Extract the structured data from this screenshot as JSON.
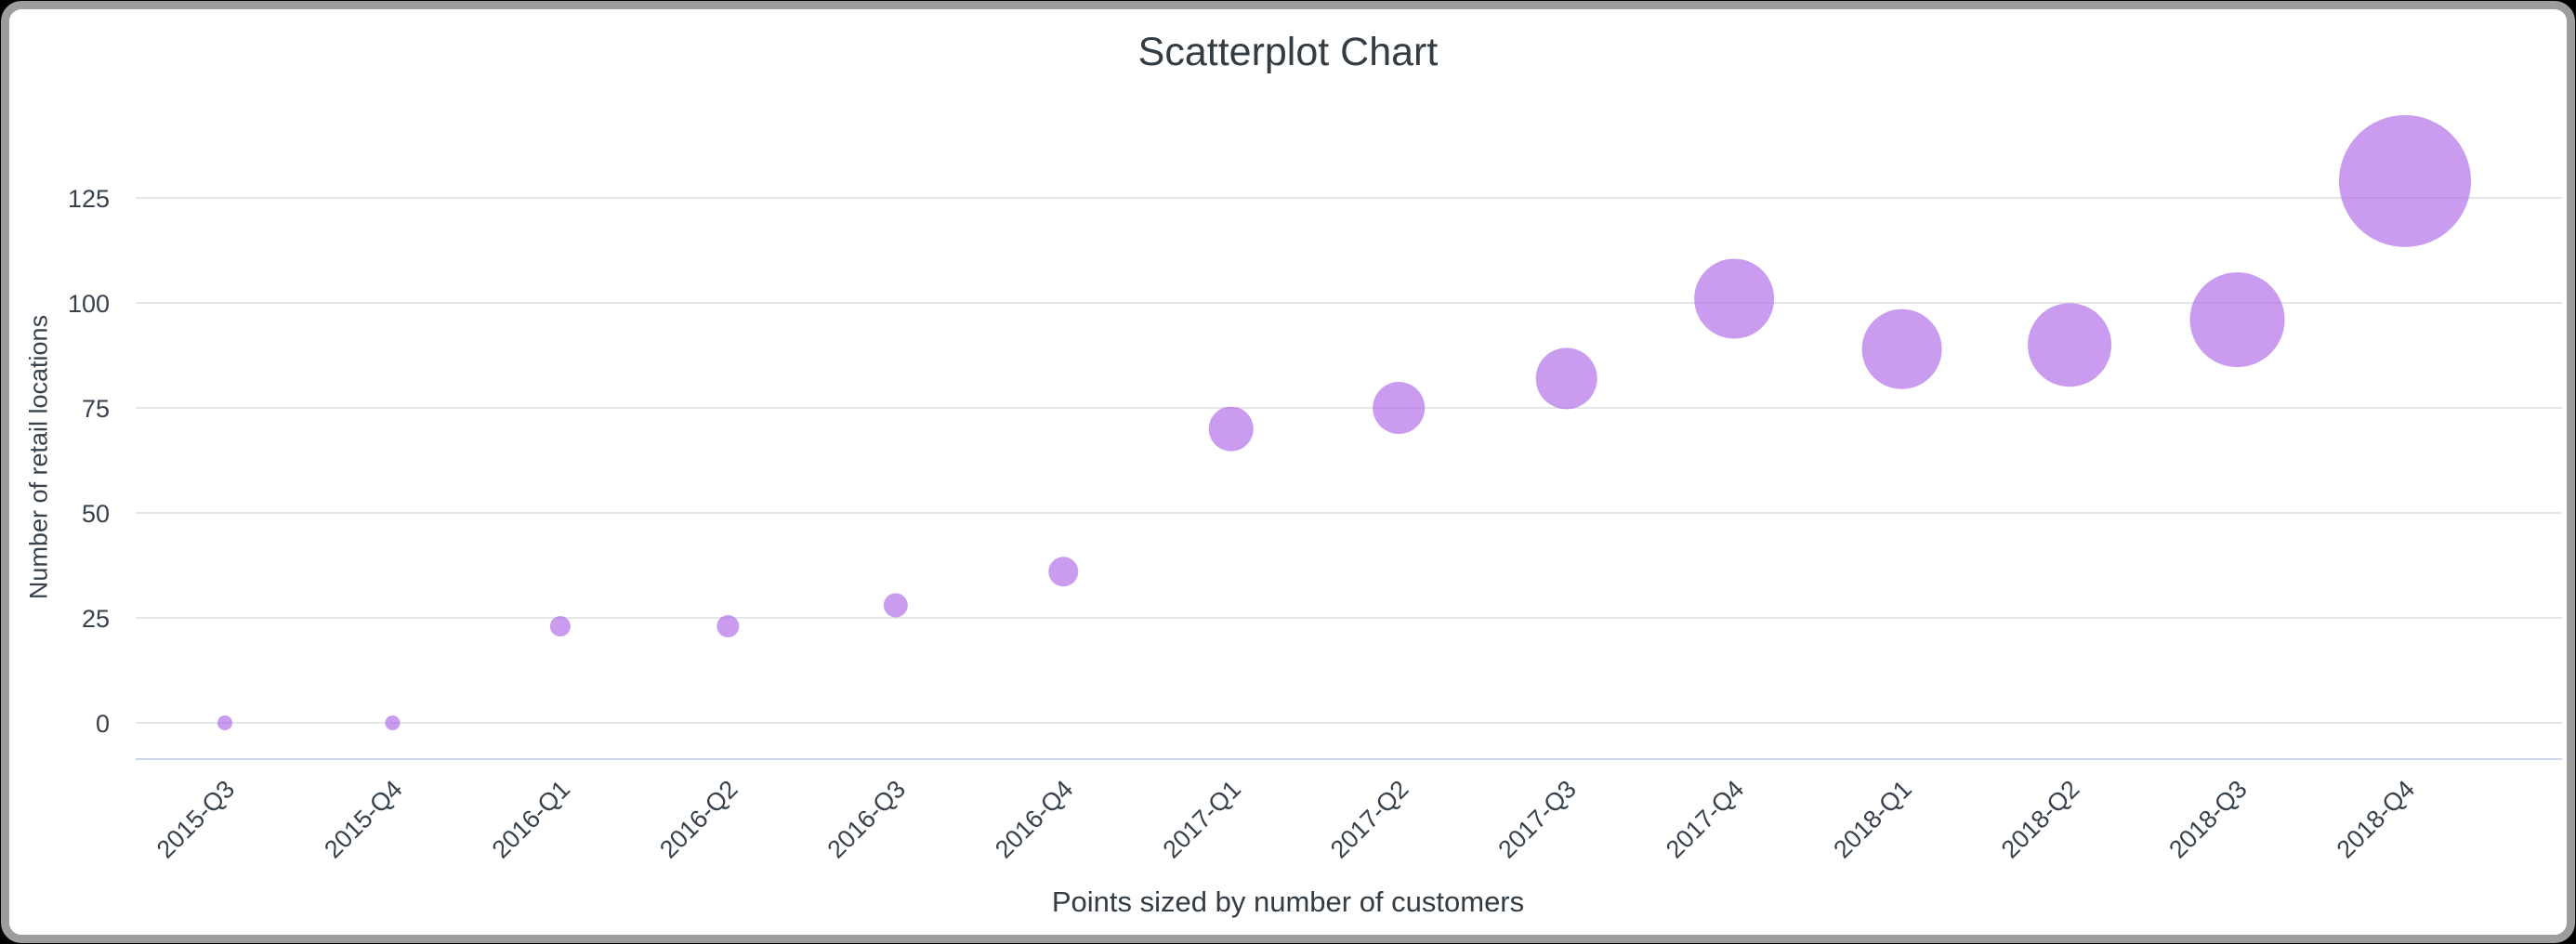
{
  "window": {
    "background": "#000000",
    "card": {
      "background": "#ffffff",
      "border_color": "#9d9d9d"
    }
  },
  "chart_data": {
    "type": "scatter",
    "title": "Scatterplot Chart",
    "subtitle_bottom": "Points sized by number of customers",
    "ylabel": "Number of retail locations",
    "xlabel": "",
    "categories": [
      "2015-Q3",
      "2015-Q4",
      "2016-Q1",
      "2016-Q2",
      "2016-Q3",
      "2016-Q4",
      "2017-Q1",
      "2017-Q2",
      "2017-Q3",
      "2017-Q4",
      "2018-Q1",
      "2018-Q2",
      "2018-Q3",
      "2018-Q4"
    ],
    "series": [
      {
        "name": "Number of retail locations",
        "values": [
          0,
          0,
          23,
          23,
          28,
          36,
          70,
          75,
          82,
          101,
          89,
          90,
          96,
          129
        ],
        "point_radius_px": [
          8,
          8,
          11,
          12,
          13,
          16,
          24,
          28,
          33,
          43,
          43,
          45,
          51,
          71
        ]
      }
    ],
    "yticks": [
      0,
      25,
      50,
      75,
      100,
      125
    ],
    "ylim": [
      -9,
      138
    ],
    "grid": true,
    "legend": false,
    "size_encoding": "Points sized by number of customers",
    "marker": {
      "displayed_color": "#c99cf0",
      "fill": "#a85fe7",
      "fill_opacity": 0.62
    },
    "axis_colors": {
      "gridline": "#e6e6e6",
      "baseline": "#ccd6eb",
      "text": "#37414b"
    }
  }
}
